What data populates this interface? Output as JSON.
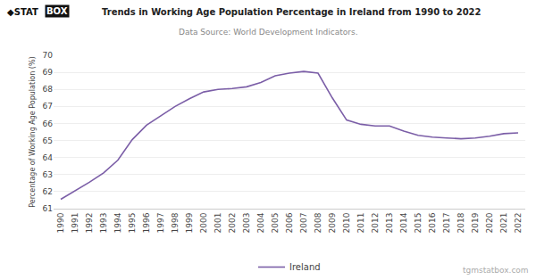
{
  "chart_data": {
    "type": "line",
    "title": "Trends in Working Age Population Percentage in Ireland from 1990 to 2022",
    "subtitle": "Data Source: World Development Indicators.",
    "y_label": "Percentage of Working Age Population (%)",
    "annotations": [
      "◆STAT",
      "BOX",
      "tgmstatbox.com"
    ],
    "x": [
      1990,
      1991,
      1992,
      1993,
      1994,
      1995,
      1996,
      1997,
      1998,
      1999,
      2000,
      2001,
      2002,
      2003,
      2004,
      2005,
      2006,
      2007,
      2008,
      2009,
      2010,
      2011,
      2012,
      2013,
      2014,
      2015,
      2016,
      2017,
      2018,
      2019,
      2020,
      2021,
      2022
    ],
    "series": [
      {
        "name": "Ireland",
        "color": "#7B5EA7",
        "values": [
          61.55,
          62.05,
          62.55,
          63.1,
          63.85,
          65.05,
          65.9,
          66.45,
          67.0,
          67.45,
          67.85,
          68.0,
          68.05,
          68.15,
          68.4,
          68.8,
          68.95,
          69.05,
          68.95,
          67.5,
          66.2,
          65.95,
          65.85,
          65.85,
          65.55,
          65.3,
          65.2,
          65.15,
          65.1,
          65.15,
          65.25,
          65.4,
          65.45
        ]
      }
    ],
    "xlim": [
      1989.5,
      2022.5
    ],
    "xticks": [
      1990,
      1991,
      1992,
      1993,
      1994,
      1995,
      1996,
      1997,
      1998,
      1999,
      2000,
      2001,
      2002,
      2003,
      2004,
      2005,
      2006,
      2007,
      2008,
      2009,
      2010,
      2011,
      2012,
      2013,
      2014,
      2015,
      2016,
      2017,
      2018,
      2019,
      2020,
      2021,
      2022
    ],
    "ylim": [
      61,
      70
    ],
    "yticks": [
      61,
      62,
      63,
      64,
      65,
      66,
      67,
      68,
      69,
      70
    ],
    "grid": "y",
    "legend": "bottom"
  }
}
